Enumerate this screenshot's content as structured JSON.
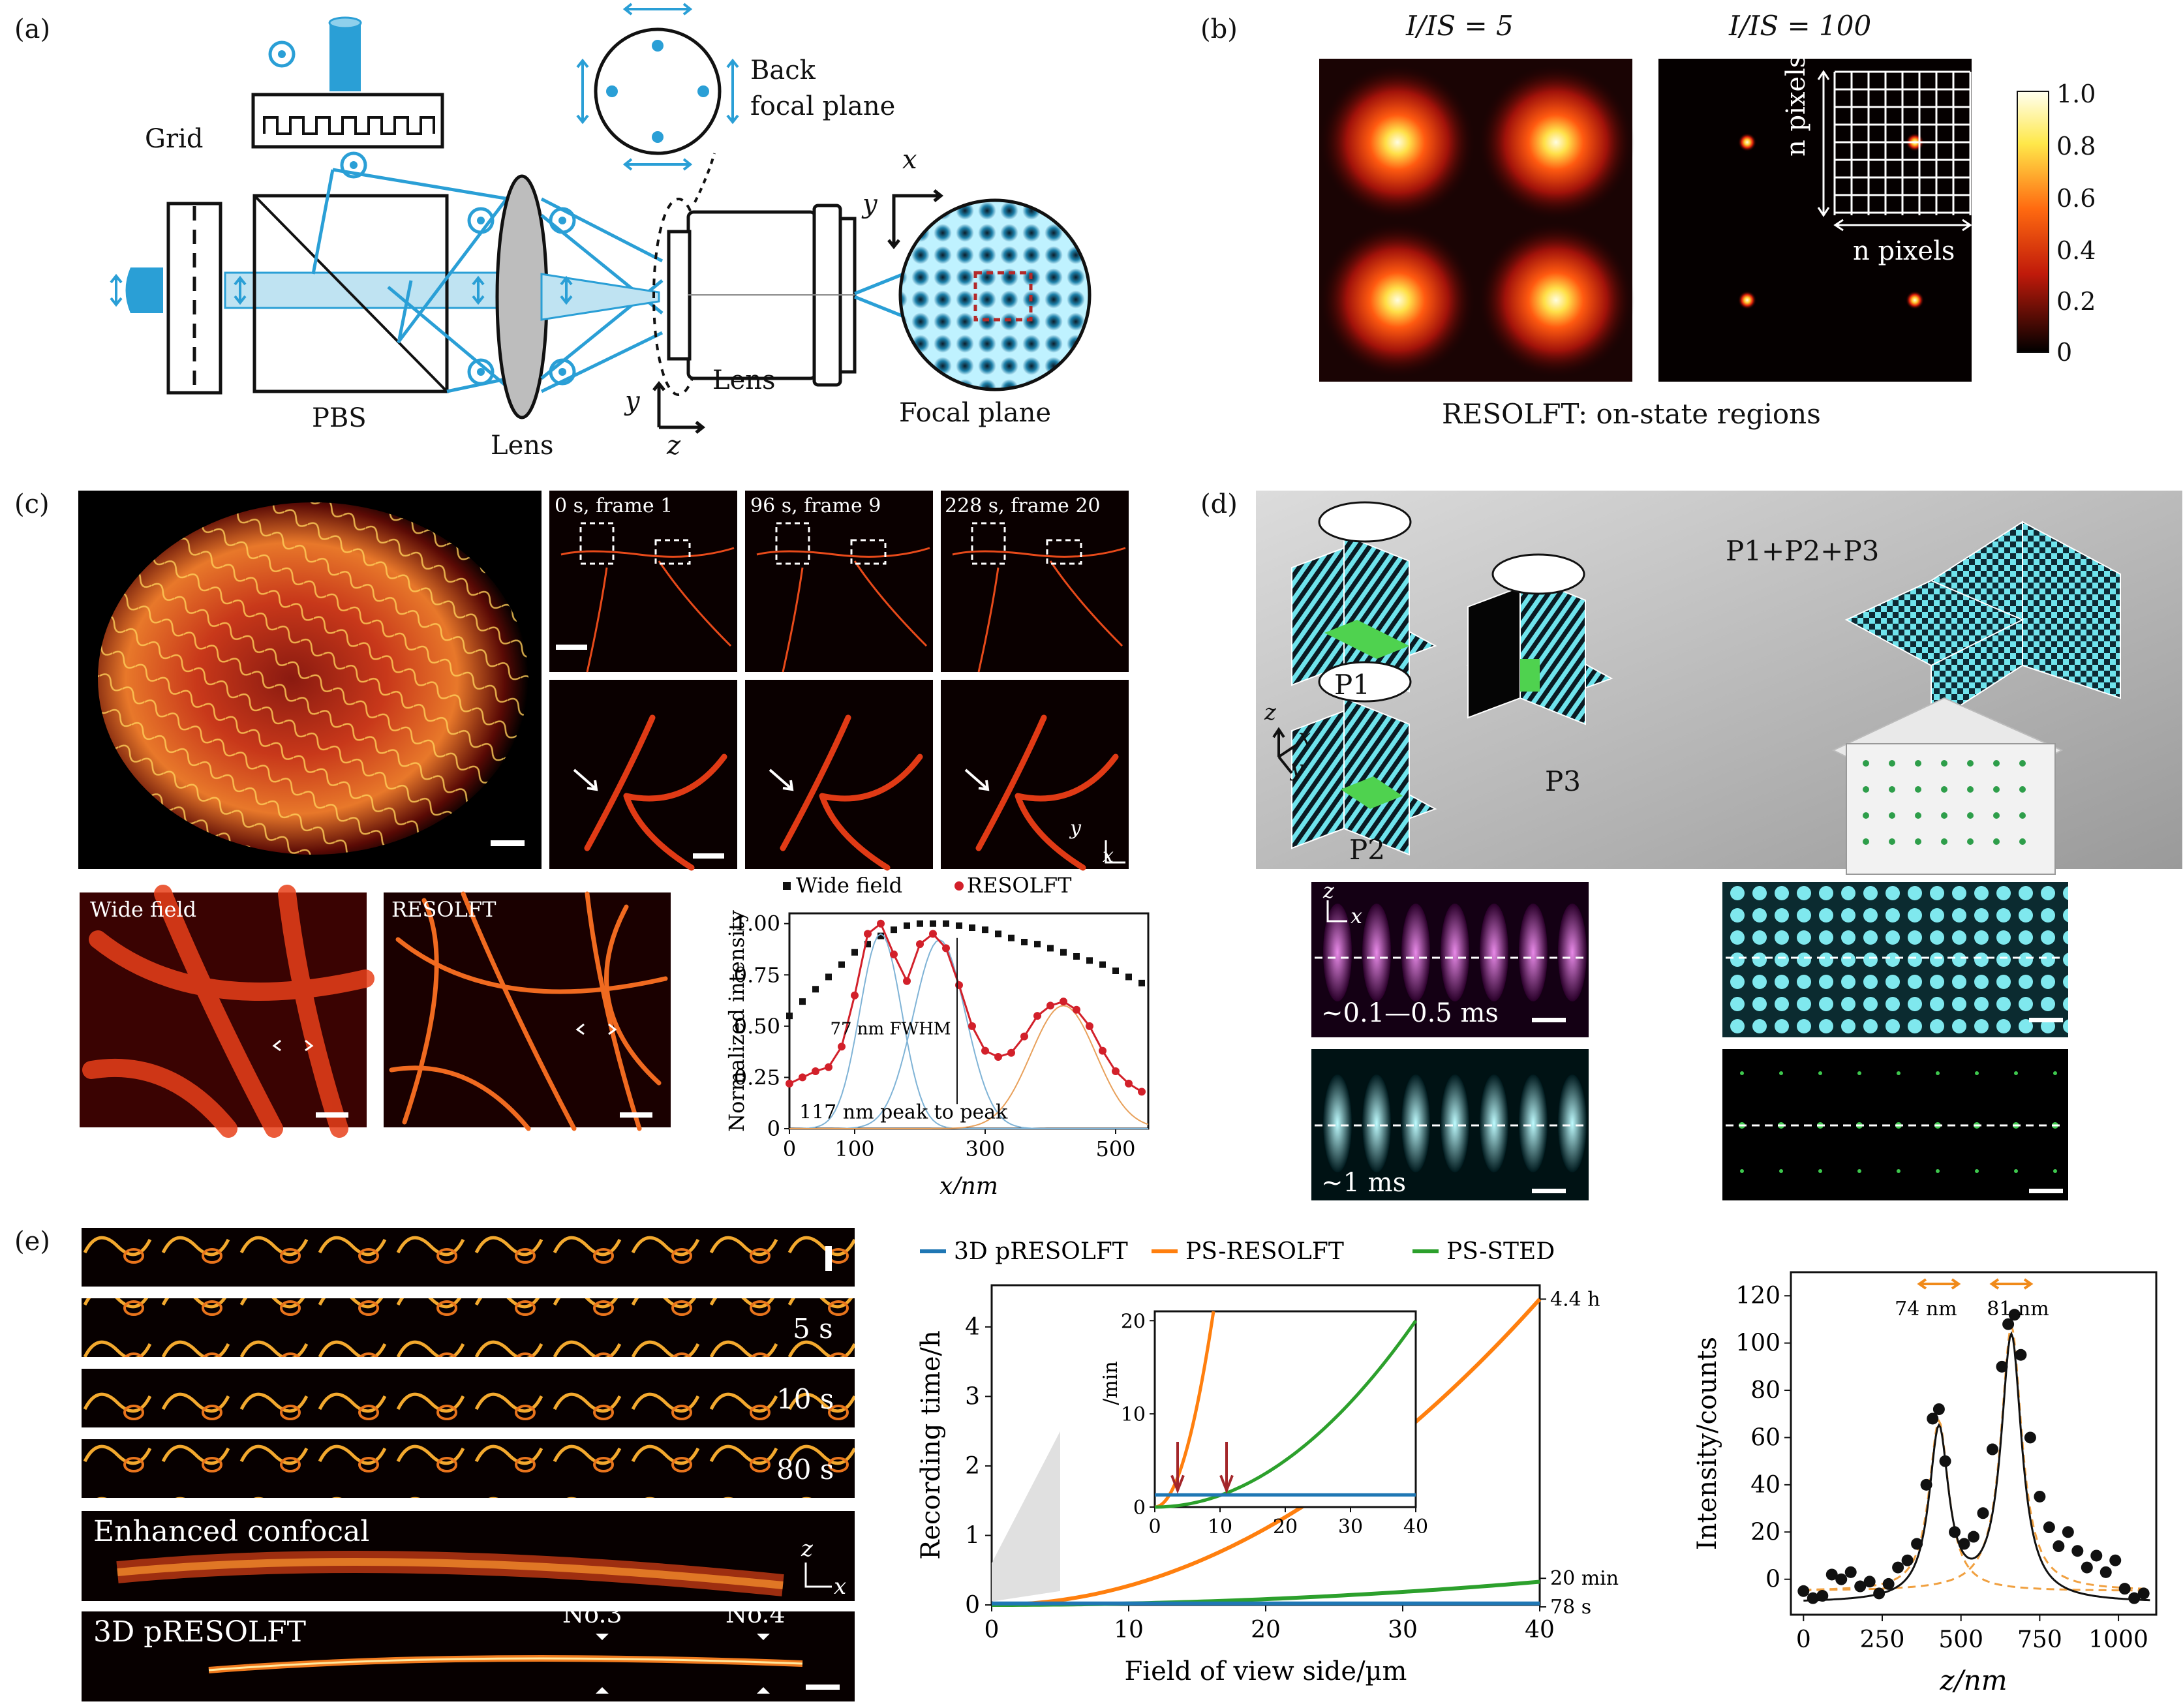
{
  "panel_a": {
    "label": "(a)",
    "grid": "Grid",
    "back_focal_plane": [
      "Back",
      "focal plane"
    ],
    "pbs": "PBS",
    "lens1": "Lens",
    "lens2": "Lens",
    "focal_plane": "Focal plane",
    "axis_x": "x",
    "axis_y": "y",
    "axis_y2": "y",
    "axis_z": "z"
  },
  "panel_b": {
    "label": "(b)",
    "title_left": "I/IS = 5",
    "title_right": "I/IS = 100",
    "n_pixels_v": "n pixels",
    "n_pixels_h": "n pixels",
    "caption": "RESOLFT: on-state regions",
    "colorbar_ticks": [
      "1.0",
      "0.8",
      "0.6",
      "0.4",
      "0.2",
      "0"
    ]
  },
  "panel_c": {
    "label": "(c)",
    "frames": [
      "0 s, frame 1",
      "96 s, frame 9",
      "228 s, frame 20"
    ],
    "axis_y": "y",
    "axis_x": "x",
    "wide_field": "Wide field",
    "resolft": "RESOLFT",
    "chart_data": {
      "type": "scatter",
      "legend": [
        "Wide field",
        "RESOLFT"
      ],
      "ylabel": "Normalized intensity",
      "xlabel": "x/nm",
      "xticks": [
        "0",
        "100",
        "300",
        "500"
      ],
      "yticks": [
        "0",
        "0.25",
        "0.50",
        "0.75",
        "1.00"
      ],
      "xlim": [
        0,
        550
      ],
      "ylim": [
        0,
        1.05
      ],
      "annotations": [
        "77 nm FWHM",
        "117 nm peak to peak"
      ],
      "series": [
        {
          "name": "Wide field",
          "x": [
            0,
            20,
            40,
            60,
            80,
            100,
            120,
            140,
            160,
            180,
            200,
            220,
            240,
            260,
            280,
            300,
            320,
            340,
            360,
            380,
            400,
            420,
            440,
            460,
            480,
            500,
            520,
            540
          ],
          "y": [
            0.55,
            0.62,
            0.68,
            0.74,
            0.8,
            0.86,
            0.9,
            0.94,
            0.97,
            0.99,
            1.0,
            1.0,
            1.0,
            0.99,
            0.98,
            0.97,
            0.95,
            0.93,
            0.91,
            0.9,
            0.88,
            0.86,
            0.84,
            0.82,
            0.8,
            0.77,
            0.74,
            0.71
          ]
        },
        {
          "name": "RESOLFT",
          "x": [
            0,
            20,
            40,
            60,
            80,
            100,
            120,
            140,
            160,
            180,
            200,
            220,
            240,
            260,
            280,
            300,
            320,
            340,
            360,
            380,
            400,
            420,
            440,
            460,
            480,
            500,
            520,
            540
          ],
          "y": [
            0.22,
            0.25,
            0.28,
            0.3,
            0.4,
            0.65,
            0.95,
            1.0,
            0.85,
            0.72,
            0.9,
            0.95,
            0.88,
            0.7,
            0.5,
            0.38,
            0.35,
            0.37,
            0.45,
            0.55,
            0.6,
            0.62,
            0.58,
            0.5,
            0.38,
            0.28,
            0.22,
            0.18
          ]
        }
      ]
    }
  },
  "panel_d": {
    "label": "(d)",
    "p1": "P1",
    "p2": "P2",
    "p3": "P3",
    "sum": "P1+P2+P3",
    "axis_z": "z",
    "axis_x": "x",
    "axis_y": "y",
    "time1": "~0.1—0.5 ms",
    "time2": "~1 ms",
    "pz": "z",
    "px": "x"
  },
  "panel_e": {
    "label": "(e)",
    "times": [
      "5 s",
      "10 s",
      "80 s"
    ],
    "enhanced": "Enhanced confocal",
    "pres": "3D pRESOLFT",
    "no3": "No.3",
    "no4": "No.4",
    "axis_z": "z",
    "axis_x": "x",
    "chart1": {
      "type": "line",
      "legend": [
        "3D pRESOLFT",
        "PS-RESOLFT",
        "PS-STED"
      ],
      "colors": [
        "#1f77b4",
        "#ff7f0e",
        "#2ca02c"
      ],
      "xlabel": "Field of view side/µm",
      "ylabel": "Recording time/h",
      "xticks": [
        "0",
        "10",
        "20",
        "30",
        "40"
      ],
      "yticks": [
        "0",
        "1",
        "2",
        "3",
        "4"
      ],
      "xlim": [
        0,
        40
      ],
      "ylim": [
        0,
        4.6
      ],
      "end_labels": [
        "4.4 h",
        "20 min",
        "78 s"
      ],
      "end_values": [
        4.4,
        0.333,
        0.0217
      ],
      "inset": {
        "ylabel": "/min",
        "xticks": [
          "0",
          "10",
          "20",
          "30",
          "40"
        ],
        "yticks": [
          "0",
          "10",
          "20"
        ],
        "xlim": [
          0,
          40
        ],
        "ylim": [
          0,
          21
        ],
        "pres_min": 1.3,
        "resolft_hit_x": 9,
        "sted_end": 20,
        "arrows_x": [
          3.5,
          11
        ]
      }
    },
    "chart2": {
      "type": "scatter",
      "xlabel": "z/nm",
      "ylabel": "Intensity/counts",
      "xticks": [
        "0",
        "250",
        "500",
        "750",
        "1000"
      ],
      "yticks": [
        "0",
        "20",
        "40",
        "60",
        "80",
        "100",
        "120"
      ],
      "xlim": [
        -40,
        1120
      ],
      "ylim": [
        -15,
        130
      ],
      "annotations": [
        "74 nm",
        "81 nm"
      ],
      "peaks": [
        {
          "z": 430,
          "height": 72
        },
        {
          "z": 660,
          "height": 112
        }
      ],
      "points": {
        "z": [
          0,
          30,
          60,
          90,
          120,
          150,
          180,
          210,
          240,
          270,
          300,
          330,
          360,
          390,
          410,
          430,
          450,
          480,
          510,
          540,
          570,
          600,
          630,
          650,
          670,
          690,
          720,
          750,
          780,
          810,
          840,
          870,
          900,
          930,
          960,
          990,
          1020,
          1050,
          1080
        ],
        "y": [
          -5,
          -8,
          -7,
          2,
          0,
          3,
          -3,
          -1,
          -6,
          -2,
          5,
          8,
          15,
          40,
          68,
          72,
          50,
          20,
          15,
          18,
          28,
          55,
          90,
          108,
          112,
          95,
          60,
          35,
          22,
          14,
          20,
          12,
          5,
          10,
          3,
          8,
          -4,
          -8,
          -6
        ]
      }
    }
  }
}
